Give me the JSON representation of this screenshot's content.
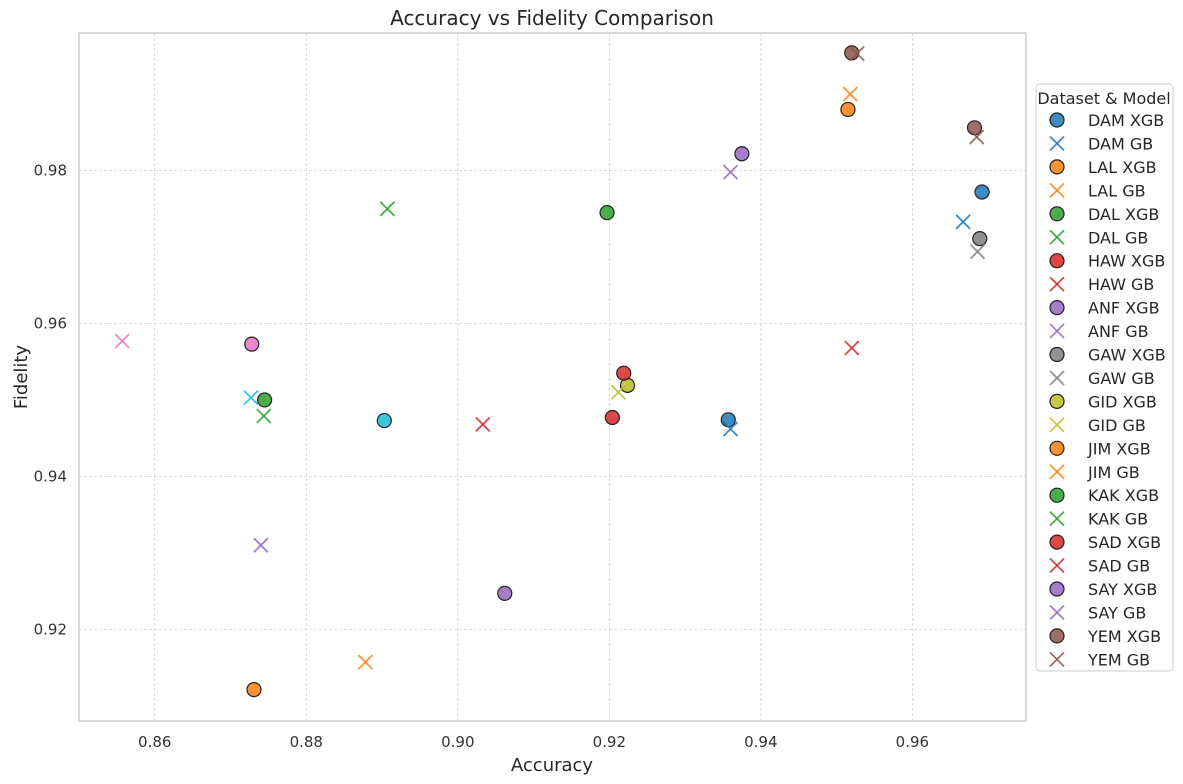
{
  "chart_data": {
    "type": "scatter",
    "title": "Accuracy vs Fidelity Comparison",
    "xlabel": "Accuracy",
    "ylabel": "Fidelity",
    "xlim": [
      0.85,
      0.975
    ],
    "ylim": [
      0.908,
      0.998
    ],
    "xticks": [
      0.86,
      0.88,
      0.9,
      0.92,
      0.94,
      0.96
    ],
    "yticks": [
      0.92,
      0.94,
      0.96,
      0.98
    ],
    "grid": true,
    "legend": {
      "title": "Dataset & Model",
      "placement": "right, outside plot"
    },
    "series": [
      {
        "name": "DAM XGB",
        "marker": "o",
        "color": "#1f77b4",
        "points": [
          [
            0.9692,
            0.9772
          ],
          [
            0.9357,
            0.9474
          ]
        ]
      },
      {
        "name": "DAM GB",
        "marker": "x",
        "color": "#1f77b4",
        "points": [
          [
            0.9667,
            0.9733
          ],
          [
            0.936,
            0.9462
          ]
        ]
      },
      {
        "name": "LAL XGB",
        "marker": "o",
        "color": "#ff7f0e",
        "points": [
          [
            0.9515,
            0.988
          ]
        ]
      },
      {
        "name": "LAL GB",
        "marker": "x",
        "color": "#ff7f0e",
        "points": [
          [
            0.9518,
            0.99
          ]
        ]
      },
      {
        "name": "DAL XGB",
        "marker": "o",
        "color": "#2ca02c",
        "points": [
          [
            0.9197,
            0.9745
          ]
        ]
      },
      {
        "name": "DAL GB",
        "marker": "x",
        "color": "#2ca02c",
        "points": [
          [
            0.8907,
            0.975
          ]
        ]
      },
      {
        "name": "HAW XGB",
        "marker": "o",
        "color": "#d62728",
        "points": [
          [
            0.9204,
            0.9477
          ]
        ]
      },
      {
        "name": "HAW GB",
        "marker": "x",
        "color": "#d62728",
        "points": [
          [
            0.952,
            0.9568
          ]
        ]
      },
      {
        "name": "ANF XGB",
        "marker": "o",
        "color": "#9467bd",
        "points": [
          [
            0.9375,
            0.9822
          ]
        ]
      },
      {
        "name": "ANF GB",
        "marker": "x",
        "color": "#9467bd",
        "points": [
          [
            0.936,
            0.9798
          ]
        ]
      },
      {
        "name": "GAW XGB",
        "marker": "o",
        "color": "#7f7f7f",
        "points": [
          [
            0.9689,
            0.9711
          ]
        ]
      },
      {
        "name": "GAW GB",
        "marker": "x",
        "color": "#7f7f7f",
        "points": [
          [
            0.9686,
            0.9694
          ]
        ]
      },
      {
        "name": "GID XGB",
        "marker": "o",
        "color": "#bcbd22",
        "points": [
          [
            0.9224,
            0.9519
          ]
        ]
      },
      {
        "name": "GID GB",
        "marker": "x",
        "color": "#bcbd22",
        "points": [
          [
            0.9212,
            0.951
          ]
        ]
      },
      {
        "name": "JIM XGB",
        "marker": "o",
        "color": "#ff7f0e",
        "points": [
          [
            0.8731,
            0.9121
          ]
        ]
      },
      {
        "name": "JIM GB",
        "marker": "x",
        "color": "#ff7f0e",
        "points": [
          [
            0.8878,
            0.9157
          ]
        ]
      },
      {
        "name": "KAK XGB",
        "marker": "o",
        "color": "#2ca02c",
        "points": [
          [
            0.8745,
            0.95
          ]
        ]
      },
      {
        "name": "KAK GB",
        "marker": "x",
        "color": "#2ca02c",
        "points": [
          [
            0.8744,
            0.9479
          ]
        ]
      },
      {
        "name": "SAD XGB",
        "marker": "o",
        "color": "#d62728",
        "points": [
          [
            0.9219,
            0.9535
          ]
        ]
      },
      {
        "name": "SAD GB",
        "marker": "x",
        "color": "#d62728",
        "points": [
          [
            0.9033,
            0.9468
          ]
        ]
      },
      {
        "name": "SAY XGB",
        "marker": "o",
        "color": "#9467bd",
        "points": [
          [
            0.9062,
            0.9247
          ]
        ]
      },
      {
        "name": "SAY GB",
        "marker": "x",
        "color": "#9467bd",
        "points": [
          [
            0.874,
            0.931
          ]
        ]
      },
      {
        "name": "YEM XGB",
        "marker": "o",
        "color": "#8c564b",
        "points": [
          [
            0.952,
            0.9954
          ],
          [
            0.9682,
            0.9856
          ]
        ]
      },
      {
        "name": "YEM GB",
        "marker": "x",
        "color": "#8c564b",
        "points": [
          [
            0.9527,
            0.9953
          ],
          [
            0.9685,
            0.9844
          ]
        ]
      },
      {
        "name": "",
        "marker": "o",
        "color": "#e377c2",
        "points": [
          [
            0.8728,
            0.9573
          ]
        ]
      },
      {
        "name": "",
        "marker": "x",
        "color": "#e377c2",
        "points": [
          [
            0.8557,
            0.9577
          ]
        ]
      },
      {
        "name": "",
        "marker": "o",
        "color": "#17becf",
        "points": [
          [
            0.8903,
            0.9473
          ]
        ]
      },
      {
        "name": "",
        "marker": "x",
        "color": "#17becf",
        "points": [
          [
            0.8727,
            0.9503
          ]
        ]
      }
    ]
  }
}
